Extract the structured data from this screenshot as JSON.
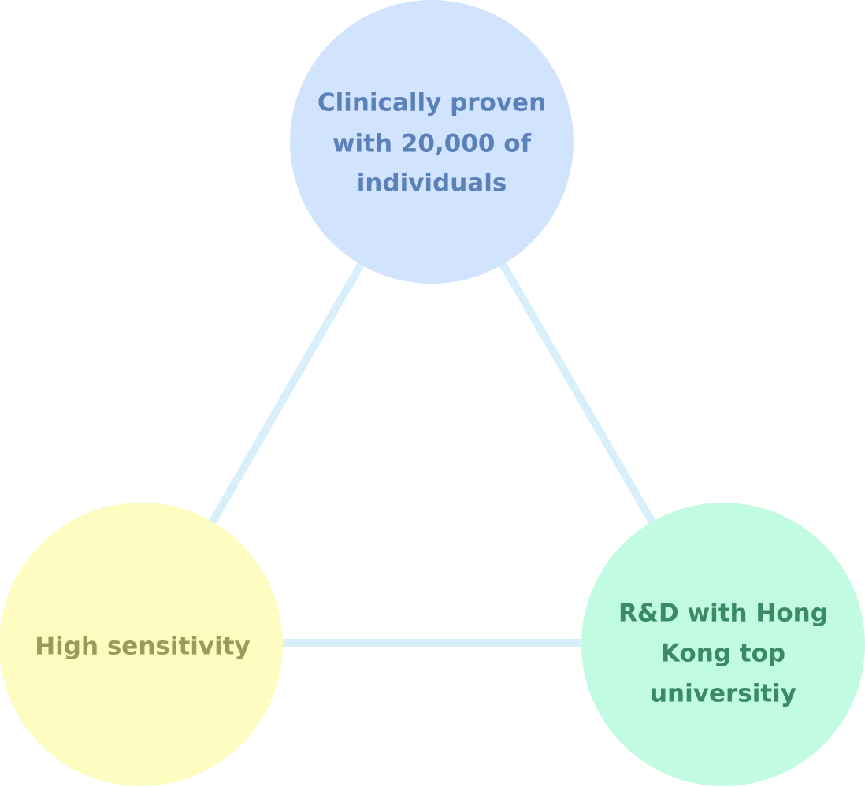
{
  "nodes": [
    {
      "lines": [
        "Clinically proven",
        "with 20,000 of",
        "individuals"
      ]
    },
    {
      "lines": [
        "High sensitivity"
      ]
    },
    {
      "lines": [
        "R&D with Hong",
        "Kong top",
        "universitiy"
      ]
    }
  ]
}
